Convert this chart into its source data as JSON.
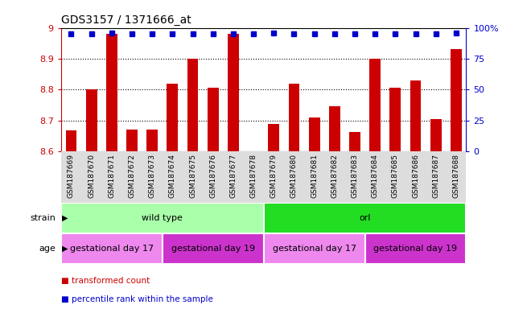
{
  "title": "GDS3157 / 1371666_at",
  "samples": [
    "GSM187669",
    "GSM187670",
    "GSM187671",
    "GSM187672",
    "GSM187673",
    "GSM187674",
    "GSM187675",
    "GSM187676",
    "GSM187677",
    "GSM187678",
    "GSM187679",
    "GSM187680",
    "GSM187681",
    "GSM187682",
    "GSM187683",
    "GSM187684",
    "GSM187685",
    "GSM187686",
    "GSM187687",
    "GSM187688"
  ],
  "bar_values": [
    8.668,
    8.8,
    8.98,
    8.672,
    8.672,
    8.82,
    8.9,
    8.805,
    8.98,
    8.6,
    8.69,
    8.82,
    8.71,
    8.745,
    8.663,
    8.9,
    8.805,
    8.83,
    8.705,
    8.93
  ],
  "percentile_values": [
    95,
    95,
    96,
    95,
    95,
    95,
    95,
    95,
    95,
    95,
    96,
    95,
    95,
    95,
    95,
    95,
    95,
    95,
    95,
    96
  ],
  "ylim_left": [
    8.6,
    9.0
  ],
  "ylim_right": [
    0,
    100
  ],
  "yticks_left": [
    8.6,
    8.7,
    8.8,
    8.9,
    9.0
  ],
  "yticks_right": [
    0,
    25,
    50,
    75,
    100
  ],
  "ytick_labels_right": [
    "0",
    "25",
    "50",
    "75",
    "100%"
  ],
  "baseline": 8.6,
  "bar_color": "#cc0000",
  "dot_color": "#0000cc",
  "bg_color": "#ffffff",
  "tick_area_color": "#dddddd",
  "hgrid_vals": [
    8.7,
    8.8,
    8.9
  ],
  "strain_groups": [
    {
      "label": "wild type",
      "start": 0,
      "end": 9,
      "color": "#aaffaa"
    },
    {
      "label": "orl",
      "start": 10,
      "end": 19,
      "color": "#22dd22"
    }
  ],
  "age_groups": [
    {
      "label": "gestational day 17",
      "start": 0,
      "end": 4,
      "color": "#ee88ee"
    },
    {
      "label": "gestational day 19",
      "start": 5,
      "end": 9,
      "color": "#cc33cc"
    },
    {
      "label": "gestational day 17",
      "start": 10,
      "end": 14,
      "color": "#ee88ee"
    },
    {
      "label": "gestational day 19",
      "start": 15,
      "end": 19,
      "color": "#cc33cc"
    }
  ],
  "legend": [
    {
      "label": "transformed count",
      "color": "#cc0000"
    },
    {
      "label": "percentile rank within the sample",
      "color": "#0000cc"
    }
  ],
  "title_fontsize": 10,
  "tick_fontsize": 8,
  "sample_fontsize": 6.5,
  "row_label_fontsize": 8,
  "row_text_fontsize": 8
}
